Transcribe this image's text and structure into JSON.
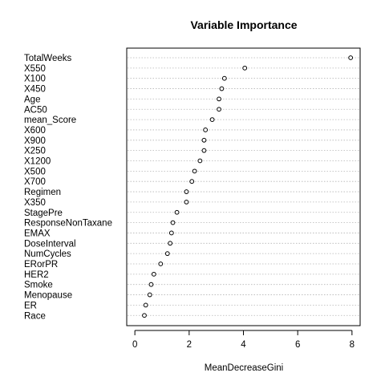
{
  "chart_data": {
    "type": "scatter",
    "title": "Variable Importance",
    "xlabel": "MeanDecreaseGini",
    "ylabel": "",
    "xlim": [
      -0.3,
      8.3
    ],
    "xticks": [
      0,
      2,
      4,
      6,
      8
    ],
    "grid": "horizontal dotted guide lines",
    "categories": [
      "TotalWeeks",
      "X550",
      "X100",
      "X450",
      "Age",
      "AC50",
      "mean_Score",
      "X600",
      "X900",
      "X250",
      "X1200",
      "X500",
      "X700",
      "Regimen",
      "X350",
      "StagePre",
      "ResponseNonTaxane",
      "EMAX",
      "DoseInterval",
      "NumCycles",
      "ERorPR",
      "HER2",
      "Smoke",
      "Menopause",
      "ER",
      "Race"
    ],
    "values": [
      7.95,
      4.05,
      3.3,
      3.2,
      3.1,
      3.1,
      2.85,
      2.6,
      2.55,
      2.55,
      2.4,
      2.2,
      2.1,
      1.9,
      1.9,
      1.55,
      1.4,
      1.35,
      1.3,
      1.2,
      0.95,
      0.7,
      0.6,
      0.55,
      0.4,
      0.35
    ]
  }
}
